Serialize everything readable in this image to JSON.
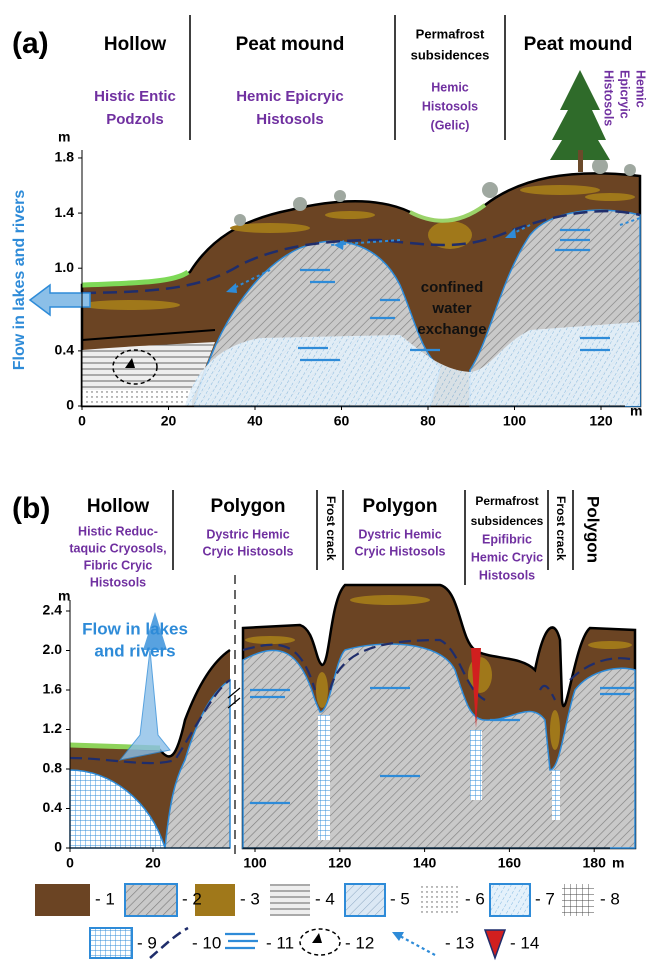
{
  "panels": [
    {
      "label": "(a)",
      "y_unit": "m",
      "x_unit": "m",
      "yticks": [
        0,
        0.4,
        {
          "value": 1,
          "label": "1.0"
        },
        1.4,
        1.8
      ],
      "xticks": [
        0,
        20,
        40,
        60,
        80,
        100,
        120
      ],
      "zones": [
        {
          "title": [
            "Hollow"
          ],
          "soil": [
            "Histic Entic",
            "Podzols"
          ]
        },
        {
          "title": [
            "Peat mound"
          ],
          "soil": [
            "Hemic Epicryic",
            "Histosols"
          ]
        },
        {
          "title": [
            "Permafrost",
            "subsidences"
          ],
          "soil": [
            "Hemic",
            "Histosols",
            "(Gelic)"
          ]
        },
        {
          "title": [
            "Peat mound"
          ],
          "soil": [
            "Hemic",
            "Epicryic",
            "Histosols"
          ]
        }
      ],
      "flow_label": [
        "Flow in lakes and rivers"
      ],
      "annotation": [
        "confined",
        "water",
        "exchange"
      ]
    },
    {
      "label": "(b)",
      "y_unit": "m",
      "x_unit": "m",
      "yticks": [
        0,
        0.4,
        0.8,
        1.2,
        1.6,
        {
          "value": 2,
          "label": "2.0"
        },
        2.4
      ],
      "xticks_left": [
        0,
        20
      ],
      "xticks_right": [
        100,
        120,
        140,
        160,
        180
      ],
      "zones": [
        {
          "title": [
            "Hollow"
          ],
          "soil": [
            "Histic Reduc-",
            "taquic Cryosols,",
            "Fibric Cryic",
            "Histosols"
          ]
        },
        {
          "title": [
            "Polygon"
          ],
          "soil": [
            "Dystric Hemic",
            "Cryic Histosols"
          ]
        },
        {
          "title": [
            "Frost crack"
          ]
        },
        {
          "title": [
            "Polygon"
          ],
          "soil": [
            "Dystric Hemic",
            "Cryic Histosols"
          ]
        },
        {
          "title": [
            "Permafrost",
            "subsidences"
          ],
          "soil": [
            "Epifibric",
            "Hemic Cryic",
            "Histosols"
          ]
        },
        {
          "title": [
            "Frost crack"
          ]
        },
        {
          "title": [
            "Polygon"
          ]
        }
      ],
      "flow_label": [
        "Flow in lakes",
        "and rivers"
      ]
    }
  ],
  "legend": [
    "- 1",
    "- 2",
    "- 3",
    "- 4",
    "- 5",
    "- 6",
    "- 7",
    "- 8",
    "- 9",
    "- 10",
    "- 11",
    "- 12",
    "- 13",
    "- 14"
  ]
}
